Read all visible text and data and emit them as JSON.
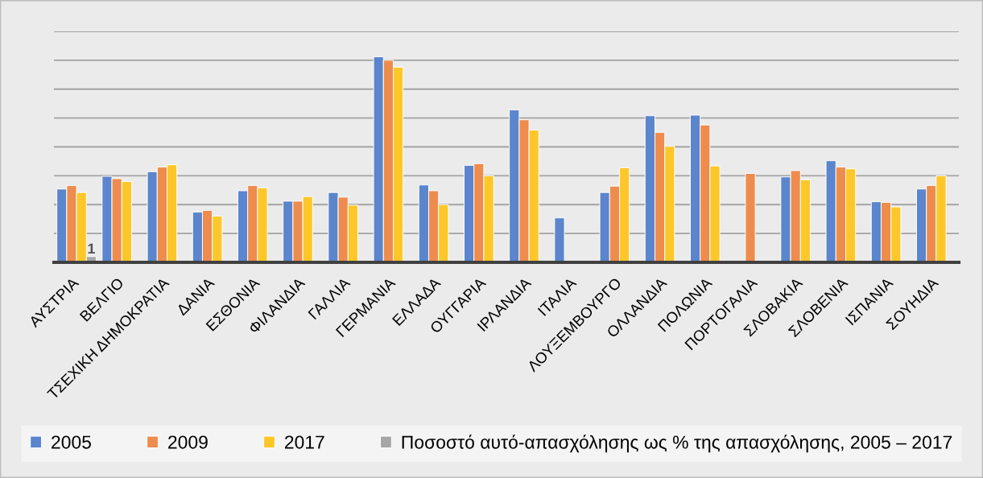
{
  "chart_data": {
    "type": "bar",
    "grid": "y",
    "legend": "bottom",
    "ylim": [
      0,
      40
    ],
    "yticks": [
      {
        "value": 0,
        "label": null
      },
      {
        "value": 5,
        "label": null
      },
      {
        "value": 10,
        "label": null
      },
      {
        "value": 15,
        "label": null
      },
      {
        "value": 20,
        "label": null
      },
      {
        "value": 25,
        "label": null
      },
      {
        "value": 30,
        "label": null
      },
      {
        "value": 35,
        "label": null
      },
      {
        "value": 40,
        "label": null
      }
    ],
    "categories": [
      "ΑΥΣΤΡΙΑ",
      "ΒΕΛΓΙΟ",
      "ΤΣΕΧΙΚΗ ΔΗΜΟΚΡΑΤΙΑ",
      "ΔΑΝΙΑ",
      "ΕΣΘΟΝΙΑ",
      "ΦΙΛΑΝΔΙΑ",
      "ΓΑΛΛΙΑ",
      "ΓΕΡΜΑΝΙΑ",
      "ΕΛΛΑΔΑ",
      "ΟΥΓΓΑΡΙΑ",
      "ΙΡΛΑΝΔΙΑ",
      "ΙΤΑΛΙΑ",
      "ΛΟΥΞΕΜΒΟΥΡΓΟ",
      "ΟΛΛΑΝΔΙΑ",
      "ΠΟΛΩΝΙΑ",
      "ΠΟΡΤΟΓΑΛΙΑ",
      "ΣΛΟΒΑΚΙΑ",
      "ΣΛΟΒΕΝΙΑ",
      "ΙΣΠΑΝΙΑ",
      "ΣΟΥΗΔΙΑ"
    ],
    "series": [
      {
        "name": "2005",
        "color": "#5b85cc",
        "values": [
          12.7,
          14.9,
          15.7,
          8.7,
          12.4,
          10.6,
          12.1,
          35.6,
          13.4,
          16.8,
          26.4,
          7.7,
          12.1,
          25.4,
          25.5,
          null,
          14.8,
          17.6,
          10.5,
          12.7
        ]
      },
      {
        "name": "2009",
        "color": "#ee8c4e",
        "values": [
          13.3,
          14.5,
          16.5,
          9.0,
          13.3,
          10.6,
          11.3,
          35.0,
          12.4,
          17.1,
          24.7,
          null,
          13.2,
          22.5,
          23.8,
          15.4,
          15.9,
          16.5,
          10.4,
          13.3
        ]
      },
      {
        "name": "2017",
        "color": "#fdc72a",
        "values": [
          12.1,
          14.0,
          16.9,
          8.0,
          12.9,
          11.4,
          9.9,
          33.8,
          10.0,
          15.0,
          22.9,
          null,
          16.4,
          20.1,
          16.7,
          null,
          14.3,
          16.2,
          9.6,
          15.0
        ]
      },
      {
        "name": "Ποσοστό αυτό-απασχόλησης ως % της απασχόλησης, 2005 – 2017",
        "color": "#a6a6a6",
        "values": [
          1,
          null,
          null,
          null,
          null,
          null,
          null,
          null,
          null,
          null,
          null,
          null,
          null,
          null,
          null,
          null,
          null,
          null,
          null,
          null
        ],
        "value_labels": [
          "1",
          null,
          null,
          null,
          null,
          null,
          null,
          null,
          null,
          null,
          null,
          null,
          null,
          null,
          null,
          null,
          null,
          null,
          null,
          null
        ]
      }
    ]
  }
}
